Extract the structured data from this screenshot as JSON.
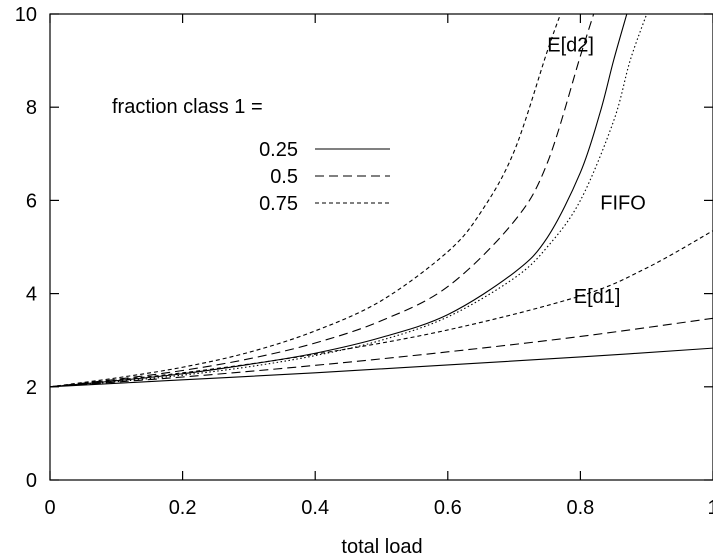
{
  "chart_data": {
    "type": "line",
    "title": "",
    "xlabel": "total load",
    "ylabel": "",
    "xlim": [
      0,
      1
    ],
    "ylim": [
      0,
      10
    ],
    "x_ticks": [
      0,
      0.2,
      0.4,
      0.6,
      0.8,
      1
    ],
    "x_tick_labels": [
      "0",
      "0.2",
      "0.4",
      "0.6",
      "0.8",
      "1"
    ],
    "y_ticks": [
      0,
      2,
      4,
      6,
      8,
      10
    ],
    "y_tick_labels": [
      "0",
      "2",
      "4",
      "6",
      "8",
      "10"
    ],
    "grid": false,
    "legend": {
      "title": "fraction class 1 =",
      "placement": "top-left",
      "entries": [
        {
          "label": "0.25",
          "dash": "solid"
        },
        {
          "label": "0.5",
          "dash": "dashed"
        },
        {
          "label": "0.75",
          "dash": "dotted-fine"
        }
      ]
    },
    "annotations": [
      {
        "text": "E[d2]",
        "x": 0.75,
        "y": 9.2
      },
      {
        "text": "FIFO",
        "x": 0.83,
        "y": 5.8
      },
      {
        "text": "E[d1]",
        "x": 0.79,
        "y": 3.8
      }
    ],
    "series": [
      {
        "label_ref": "0.25",
        "group": "E[d2]",
        "dash": "solid",
        "x": [
          0,
          0.1,
          0.2,
          0.3,
          0.4,
          0.5,
          0.6,
          0.7,
          0.75,
          0.8,
          0.83,
          0.85,
          0.87
        ],
        "y": [
          2,
          2.13,
          2.28,
          2.48,
          2.72,
          3.06,
          3.55,
          4.45,
          5.2,
          6.6,
          7.9,
          9.0,
          10
        ]
      },
      {
        "label_ref": "0.5",
        "group": "E[d2]",
        "dash": "dashed",
        "x": [
          0,
          0.1,
          0.2,
          0.3,
          0.4,
          0.5,
          0.6,
          0.7,
          0.75,
          0.8,
          0.82
        ],
        "y": [
          2,
          2.16,
          2.35,
          2.6,
          2.94,
          3.42,
          4.15,
          5.55,
          6.8,
          9.1,
          10
        ]
      },
      {
        "label_ref": "0.75",
        "group": "E[d2]",
        "dash": "dotted-fine",
        "x": [
          0,
          0.1,
          0.2,
          0.3,
          0.4,
          0.5,
          0.6,
          0.65,
          0.7,
          0.75,
          0.77
        ],
        "y": [
          2,
          2.19,
          2.42,
          2.74,
          3.2,
          3.85,
          4.9,
          5.75,
          7.05,
          9.2,
          10
        ]
      },
      {
        "label_ref": "FIFO",
        "group": "FIFO",
        "dash": "dotted",
        "x": [
          0,
          0.1,
          0.2,
          0.3,
          0.4,
          0.5,
          0.6,
          0.7,
          0.75,
          0.8,
          0.85,
          0.875,
          0.9
        ],
        "y": [
          2,
          2.11,
          2.25,
          2.43,
          2.67,
          3.0,
          3.5,
          4.33,
          5.0,
          6.0,
          7.7,
          9.0,
          10
        ]
      },
      {
        "label_ref": "0.25",
        "group": "E[d1]",
        "dash": "solid",
        "x": [
          0,
          0.2,
          0.4,
          0.6,
          0.8,
          1
        ],
        "y": [
          2,
          2.15,
          2.3,
          2.47,
          2.64,
          2.83
        ]
      },
      {
        "label_ref": "0.5",
        "group": "E[d1]",
        "dash": "dashed",
        "x": [
          0,
          0.2,
          0.4,
          0.6,
          0.8,
          1
        ],
        "y": [
          2,
          2.21,
          2.46,
          2.75,
          3.08,
          3.47
        ]
      },
      {
        "label_ref": "0.75",
        "group": "E[d1]",
        "dash": "dotted-fine",
        "x": [
          0,
          0.2,
          0.4,
          0.6,
          0.8,
          0.9,
          1
        ],
        "y": [
          2,
          2.3,
          2.7,
          3.22,
          3.95,
          4.55,
          5.35
        ]
      }
    ]
  }
}
